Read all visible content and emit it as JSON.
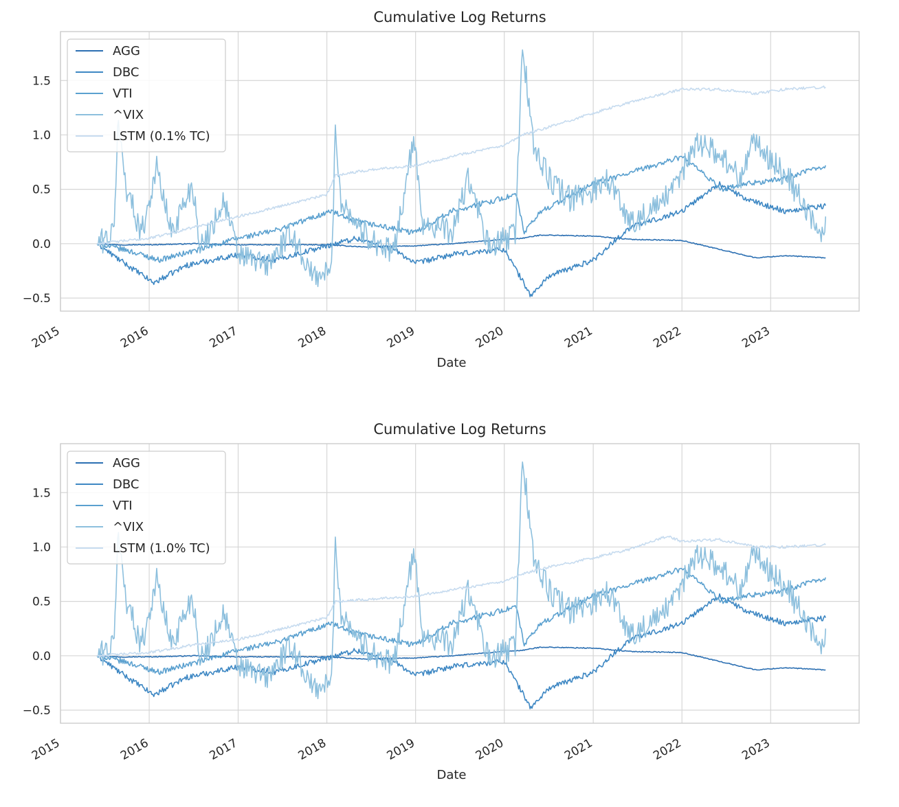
{
  "chart_data": [
    {
      "type": "line",
      "title": "Cumulative Log Returns",
      "xlabel": "Date",
      "ylabel": "",
      "xlim": [
        "2015-01-01",
        "2023-12-31"
      ],
      "ylim": [
        -0.62,
        1.95
      ],
      "x_ticks": [
        "2015",
        "2016",
        "2017",
        "2018",
        "2019",
        "2020",
        "2021",
        "2022",
        "2023"
      ],
      "y_ticks": [
        "−0.5",
        "0.0",
        "0.5",
        "1.0",
        "1.5"
      ],
      "grid": true,
      "legend_position": "top-left",
      "series": [
        {
          "name": "AGG",
          "color": "#2b6fb2",
          "x": [
            "2015-06-01",
            "2015-09-01",
            "2016-01-01",
            "2016-07-01",
            "2017-01-01",
            "2017-06-01",
            "2018-01-01",
            "2018-06-01",
            "2019-01-01",
            "2019-06-01",
            "2020-01-01",
            "2020-03-15",
            "2020-06-01",
            "2021-01-01",
            "2021-06-01",
            "2022-01-01",
            "2022-06-01",
            "2022-11-01",
            "2023-03-01",
            "2023-08-15"
          ],
          "values": [
            0.0,
            -0.01,
            -0.01,
            0.0,
            -0.01,
            -0.01,
            -0.01,
            -0.03,
            -0.02,
            0.0,
            0.04,
            0.05,
            0.08,
            0.07,
            0.04,
            0.03,
            -0.05,
            -0.13,
            -0.11,
            -0.13
          ]
        },
        {
          "name": "DBC",
          "color": "#3d87c3",
          "x": [
            "2015-06-01",
            "2015-09-01",
            "2016-01-20",
            "2016-06-01",
            "2017-01-01",
            "2017-06-01",
            "2018-01-01",
            "2018-05-01",
            "2018-10-01",
            "2019-01-01",
            "2019-06-01",
            "2020-01-01",
            "2020-04-20",
            "2020-07-01",
            "2021-01-01",
            "2021-06-01",
            "2022-01-01",
            "2022-06-01",
            "2022-10-01",
            "2023-03-01",
            "2023-08-15"
          ],
          "values": [
            0.0,
            -0.15,
            -0.36,
            -0.2,
            -0.1,
            -0.15,
            -0.02,
            0.05,
            -0.05,
            -0.18,
            -0.1,
            -0.05,
            -0.48,
            -0.3,
            -0.15,
            0.15,
            0.3,
            0.55,
            0.4,
            0.3,
            0.35
          ]
        },
        {
          "name": "VTI",
          "color": "#5aa0cf",
          "x": [
            "2015-06-01",
            "2015-10-01",
            "2016-02-10",
            "2016-08-01",
            "2017-01-01",
            "2017-06-01",
            "2018-01-20",
            "2018-04-01",
            "2018-12-24",
            "2019-06-01",
            "2020-02-19",
            "2020-03-23",
            "2020-06-01",
            "2021-01-01",
            "2021-06-01",
            "2022-01-01",
            "2022-06-15",
            "2022-10-01",
            "2023-03-01",
            "2023-08-15"
          ],
          "values": [
            0.0,
            -0.06,
            -0.15,
            -0.05,
            0.05,
            0.12,
            0.3,
            0.22,
            0.1,
            0.3,
            0.45,
            0.1,
            0.3,
            0.55,
            0.65,
            0.8,
            0.5,
            0.55,
            0.6,
            0.72
          ]
        },
        {
          "name": "^VIX",
          "color": "#8cbfdd",
          "x": [
            "2015-06-01",
            "2015-08-10",
            "2015-08-24",
            "2015-10-01",
            "2015-12-01",
            "2016-02-01",
            "2016-04-01",
            "2016-06-27",
            "2016-08-01",
            "2016-11-04",
            "2017-01-01",
            "2017-05-01",
            "2017-08-10",
            "2017-11-01",
            "2018-01-20",
            "2018-02-05",
            "2018-03-01",
            "2018-06-01",
            "2018-10-01",
            "2018-12-24",
            "2019-02-01",
            "2019-06-01",
            "2019-08-05",
            "2019-11-01",
            "2020-02-15",
            "2020-03-16",
            "2020-05-01",
            "2020-07-01",
            "2020-10-01",
            "2021-01-01",
            "2021-03-01",
            "2021-06-01",
            "2021-09-01",
            "2021-12-01",
            "2022-03-01",
            "2022-06-15",
            "2022-09-01",
            "2022-10-15",
            "2023-03-15",
            "2023-06-01",
            "2023-08-01",
            "2023-08-15"
          ],
          "values": [
            0.0,
            0.1,
            1.12,
            0.5,
            0.1,
            0.7,
            0.1,
            0.55,
            -0.05,
            0.4,
            -0.1,
            -0.2,
            0.1,
            -0.3,
            -0.25,
            1.02,
            0.4,
            0.1,
            -0.1,
            0.95,
            0.2,
            0.1,
            0.6,
            -0.05,
            0.1,
            1.82,
            0.9,
            0.6,
            0.4,
            0.5,
            0.6,
            0.2,
            0.3,
            0.5,
            0.95,
            0.8,
            0.6,
            0.95,
            0.6,
            0.3,
            0.05,
            0.25
          ]
        },
        {
          "name": "LSTM (0.1% TC)",
          "color": "#c6dbef",
          "x": [
            "2015-06-01",
            "2016-01-01",
            "2016-07-01",
            "2017-01-01",
            "2017-07-01",
            "2018-01-01",
            "2018-02-05",
            "2018-07-01",
            "2019-01-01",
            "2019-07-01",
            "2020-01-01",
            "2020-03-16",
            "2020-06-01",
            "2021-01-01",
            "2021-06-01",
            "2022-01-01",
            "2022-06-01",
            "2022-11-01",
            "2023-03-01",
            "2023-08-15"
          ],
          "values": [
            0.0,
            0.05,
            0.15,
            0.25,
            0.35,
            0.45,
            0.63,
            0.68,
            0.72,
            0.82,
            0.9,
            1.0,
            1.05,
            1.2,
            1.3,
            1.42,
            1.42,
            1.38,
            1.42,
            1.44
          ]
        }
      ]
    },
    {
      "type": "line",
      "title": "Cumulative Log Returns",
      "xlabel": "Date",
      "ylabel": "",
      "xlim": [
        "2015-01-01",
        "2023-12-31"
      ],
      "ylim": [
        -0.62,
        1.95
      ],
      "x_ticks": [
        "2015",
        "2016",
        "2017",
        "2018",
        "2019",
        "2020",
        "2021",
        "2022",
        "2023"
      ],
      "y_ticks": [
        "−0.5",
        "0.0",
        "0.5",
        "1.0",
        "1.5"
      ],
      "grid": true,
      "legend_position": "top-left",
      "series": [
        {
          "name": "AGG",
          "color": "#2b6fb2",
          "x": [
            "2015-06-01",
            "2015-09-01",
            "2016-01-01",
            "2016-07-01",
            "2017-01-01",
            "2017-06-01",
            "2018-01-01",
            "2018-06-01",
            "2019-01-01",
            "2019-06-01",
            "2020-01-01",
            "2020-03-15",
            "2020-06-01",
            "2021-01-01",
            "2021-06-01",
            "2022-01-01",
            "2022-06-01",
            "2022-11-01",
            "2023-03-01",
            "2023-08-15"
          ],
          "values": [
            0.0,
            -0.01,
            -0.01,
            0.0,
            -0.01,
            -0.01,
            -0.01,
            -0.03,
            -0.02,
            0.0,
            0.04,
            0.05,
            0.08,
            0.07,
            0.04,
            0.03,
            -0.05,
            -0.13,
            -0.11,
            -0.13
          ]
        },
        {
          "name": "DBC",
          "color": "#3d87c3",
          "x": [
            "2015-06-01",
            "2015-09-01",
            "2016-01-20",
            "2016-06-01",
            "2017-01-01",
            "2017-06-01",
            "2018-01-01",
            "2018-05-01",
            "2018-10-01",
            "2019-01-01",
            "2019-06-01",
            "2020-01-01",
            "2020-04-20",
            "2020-07-01",
            "2021-01-01",
            "2021-06-01",
            "2022-01-01",
            "2022-06-01",
            "2022-10-01",
            "2023-03-01",
            "2023-08-15"
          ],
          "values": [
            0.0,
            -0.15,
            -0.36,
            -0.2,
            -0.1,
            -0.15,
            -0.02,
            0.05,
            -0.05,
            -0.18,
            -0.1,
            -0.05,
            -0.48,
            -0.3,
            -0.15,
            0.15,
            0.3,
            0.55,
            0.4,
            0.3,
            0.35
          ]
        },
        {
          "name": "VTI",
          "color": "#5aa0cf",
          "x": [
            "2015-06-01",
            "2015-10-01",
            "2016-02-10",
            "2016-08-01",
            "2017-01-01",
            "2017-06-01",
            "2018-01-20",
            "2018-04-01",
            "2018-12-24",
            "2019-06-01",
            "2020-02-19",
            "2020-03-23",
            "2020-06-01",
            "2021-01-01",
            "2021-06-01",
            "2022-01-01",
            "2022-06-15",
            "2022-10-01",
            "2023-03-01",
            "2023-08-15"
          ],
          "values": [
            0.0,
            -0.06,
            -0.15,
            -0.05,
            0.05,
            0.12,
            0.3,
            0.22,
            0.1,
            0.3,
            0.45,
            0.1,
            0.3,
            0.55,
            0.65,
            0.8,
            0.5,
            0.55,
            0.6,
            0.72
          ]
        },
        {
          "name": "^VIX",
          "color": "#8cbfdd",
          "x": [
            "2015-06-01",
            "2015-08-10",
            "2015-08-24",
            "2015-10-01",
            "2015-12-01",
            "2016-02-01",
            "2016-04-01",
            "2016-06-27",
            "2016-08-01",
            "2016-11-04",
            "2017-01-01",
            "2017-05-01",
            "2017-08-10",
            "2017-11-01",
            "2018-01-20",
            "2018-02-05",
            "2018-03-01",
            "2018-06-01",
            "2018-10-01",
            "2018-12-24",
            "2019-02-01",
            "2019-06-01",
            "2019-08-05",
            "2019-11-01",
            "2020-02-15",
            "2020-03-16",
            "2020-05-01",
            "2020-07-01",
            "2020-10-01",
            "2021-01-01",
            "2021-03-01",
            "2021-06-01",
            "2021-09-01",
            "2021-12-01",
            "2022-03-01",
            "2022-06-15",
            "2022-09-01",
            "2022-10-15",
            "2023-03-15",
            "2023-06-01",
            "2023-08-01",
            "2023-08-15"
          ],
          "values": [
            0.0,
            0.1,
            1.12,
            0.5,
            0.1,
            0.7,
            0.1,
            0.55,
            -0.05,
            0.4,
            -0.1,
            -0.2,
            0.1,
            -0.3,
            -0.25,
            1.02,
            0.4,
            0.1,
            -0.1,
            0.95,
            0.2,
            0.1,
            0.6,
            -0.05,
            0.1,
            1.82,
            0.9,
            0.6,
            0.4,
            0.5,
            0.6,
            0.2,
            0.3,
            0.5,
            0.95,
            0.8,
            0.6,
            0.95,
            0.6,
            0.3,
            0.05,
            0.25
          ]
        },
        {
          "name": "LSTM (1.0% TC)",
          "color": "#c6dbef",
          "x": [
            "2015-06-01",
            "2016-01-01",
            "2016-07-01",
            "2017-01-01",
            "2017-07-01",
            "2018-01-01",
            "2018-02-05",
            "2018-07-01",
            "2019-01-01",
            "2019-07-01",
            "2020-01-01",
            "2020-03-16",
            "2020-06-01",
            "2021-01-01",
            "2021-06-01",
            "2021-11-01",
            "2022-01-01",
            "2022-06-01",
            "2022-11-01",
            "2023-03-01",
            "2023-08-15"
          ],
          "values": [
            0.0,
            0.03,
            0.1,
            0.15,
            0.25,
            0.35,
            0.5,
            0.52,
            0.55,
            0.62,
            0.68,
            0.75,
            0.8,
            0.9,
            0.98,
            1.1,
            1.05,
            1.07,
            1.0,
            1.0,
            1.02
          ]
        }
      ]
    }
  ]
}
